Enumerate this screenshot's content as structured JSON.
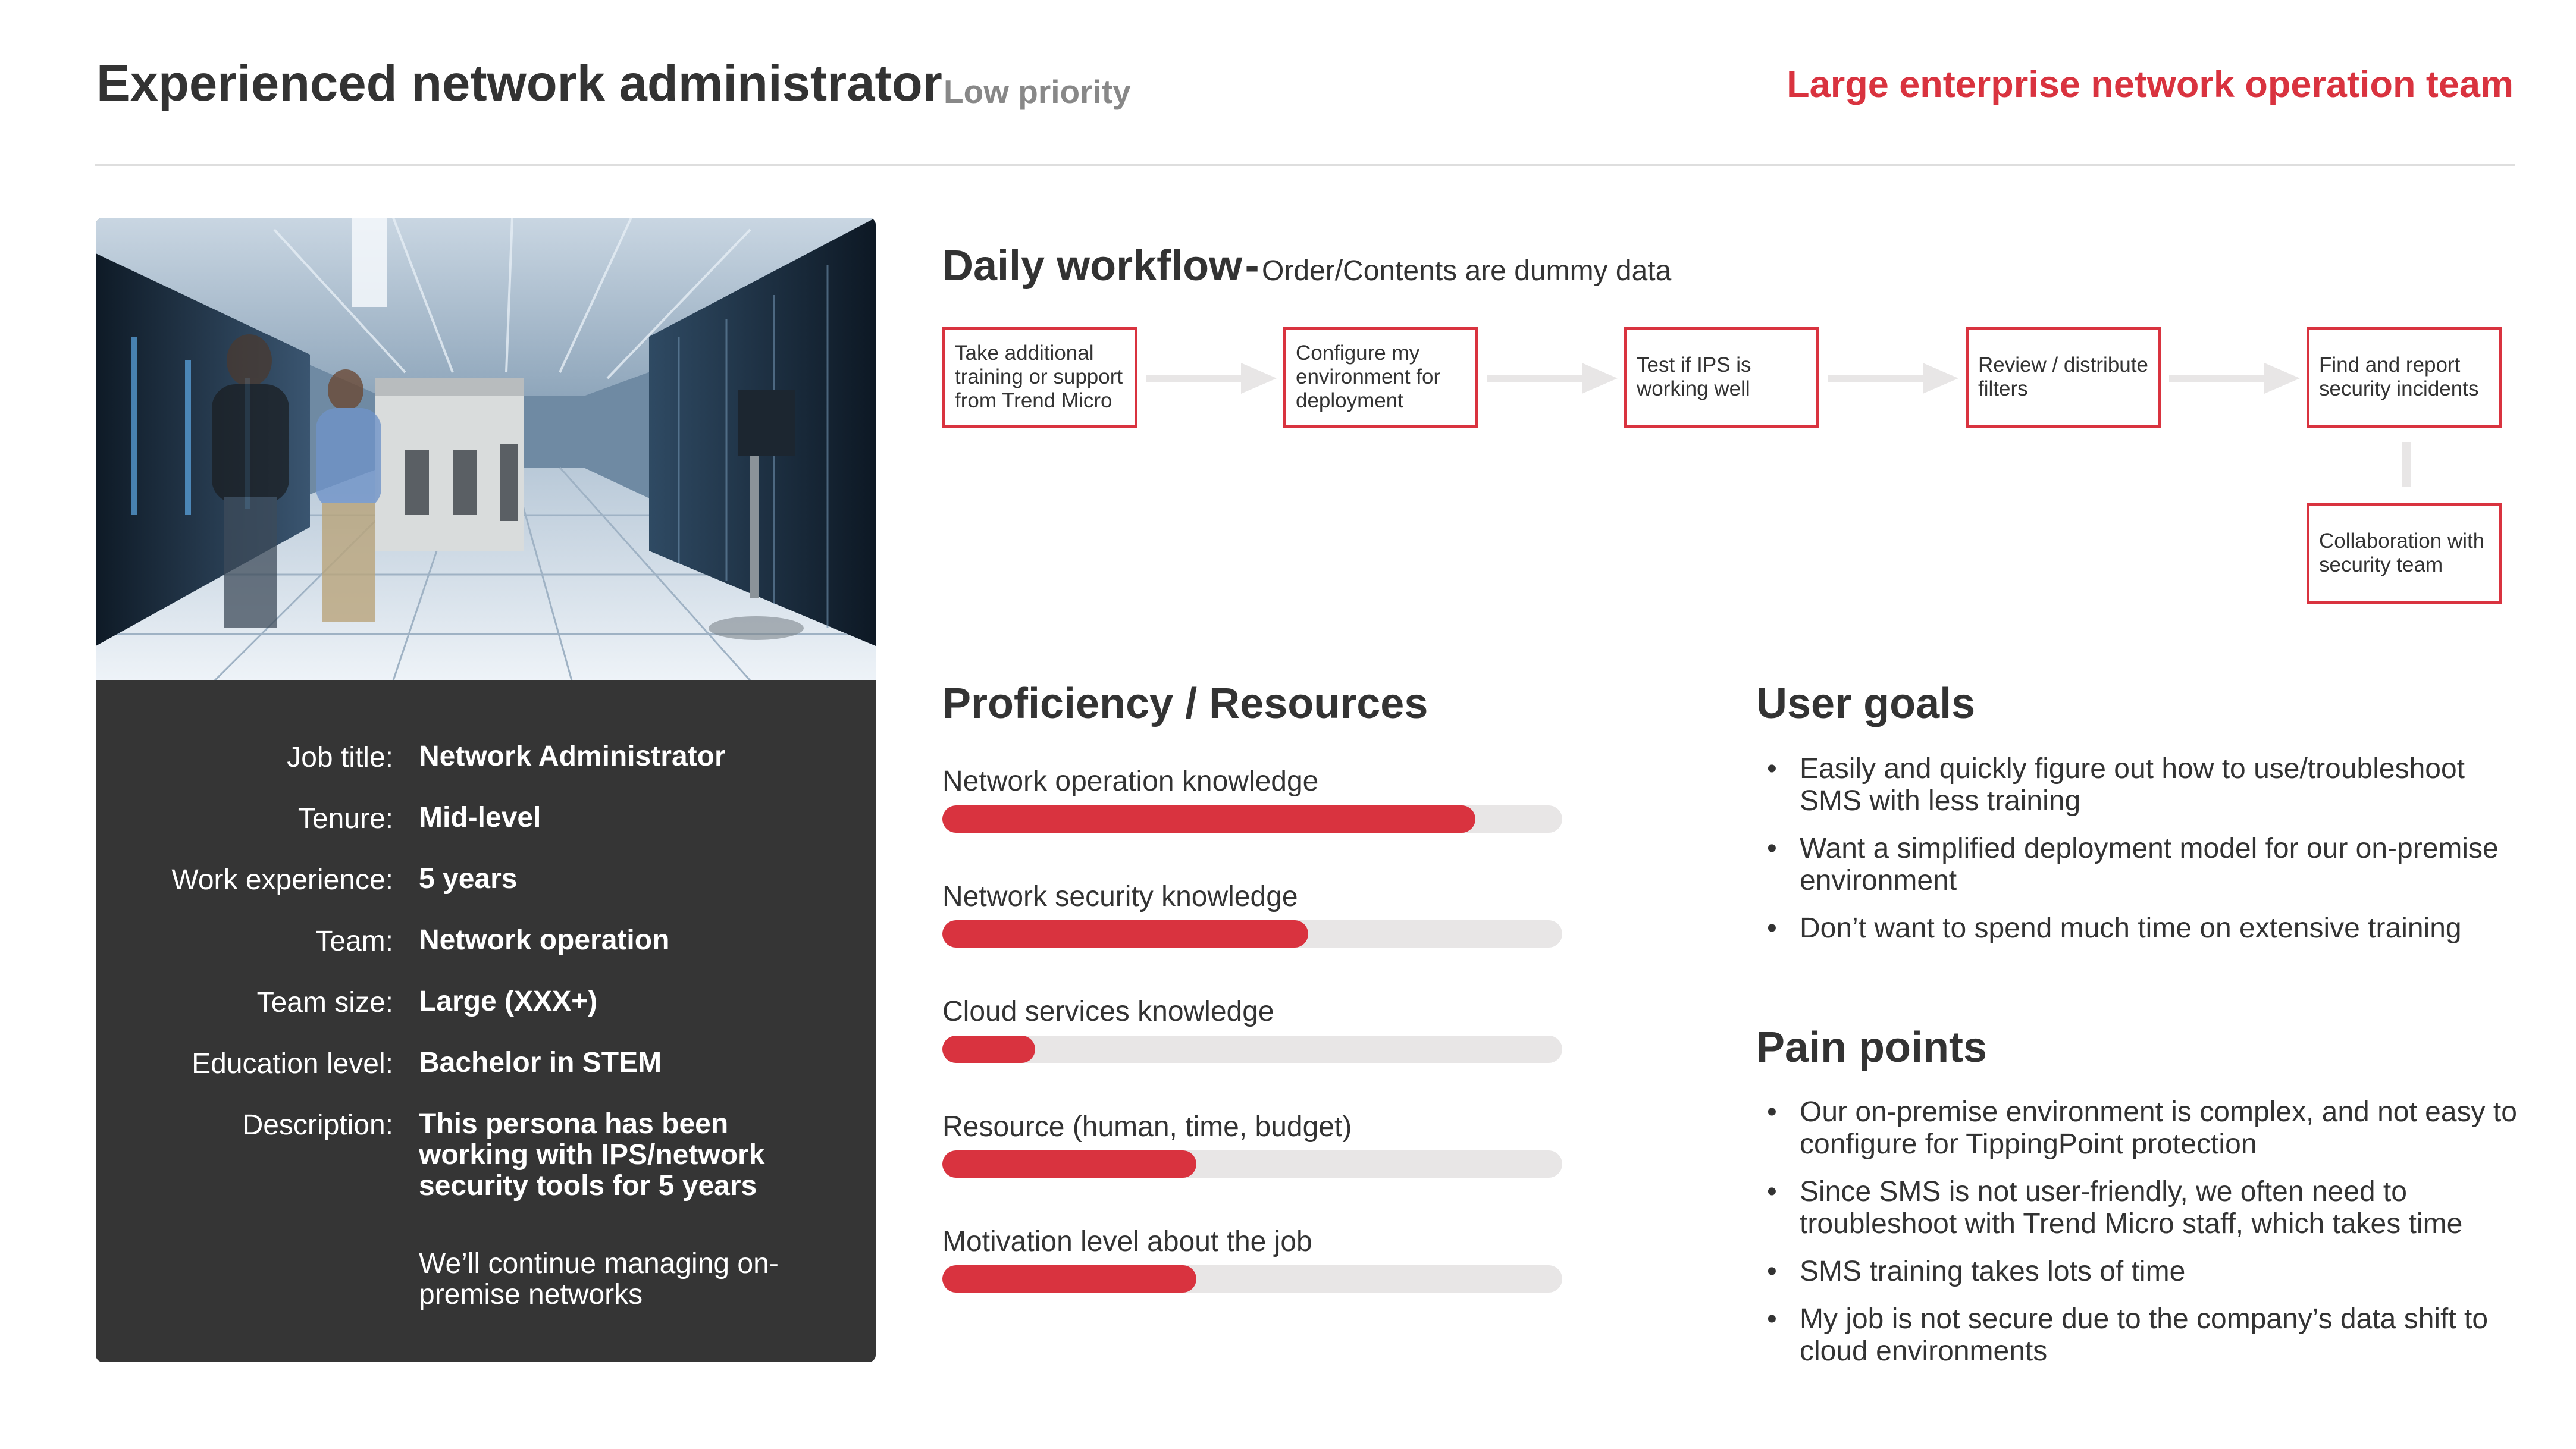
{
  "header": {
    "title": "Experienced network administrator",
    "priority": "Low priority",
    "team": "Large enterprise network operation team"
  },
  "persona": {
    "fields": [
      {
        "label": "Job title:",
        "value": "Network Administrator"
      },
      {
        "label": "Tenure:",
        "value": "Mid-level"
      },
      {
        "label": "Work experience:",
        "value": "5 years"
      },
      {
        "label": "Team:",
        "value": "Network operation"
      },
      {
        "label": "Team size:",
        "value": "Large (XXX+)"
      },
      {
        "label": "Education level:",
        "value": "Bachelor in STEM"
      },
      {
        "label": "Description:",
        "value": "This persona has been working with IPS/network security tools for 5 years"
      }
    ],
    "description_note": "We’ll continue managing on-premise networks"
  },
  "workflow": {
    "title": "Daily workflow",
    "separator": "-",
    "note": "Order/Contents are dummy data",
    "steps": [
      "Take additional training or support from Trend Micro",
      "Configure my environment for deployment",
      "Test if IPS is working well",
      "Review / distribute filters",
      "Find and report security incidents"
    ],
    "branch_step": "Collaboration with security team"
  },
  "proficiency": {
    "title": "Proficiency / Resources",
    "items": [
      {
        "label": "Network operation knowledge",
        "level": 0.86
      },
      {
        "label": "Network security knowledge",
        "level": 0.59
      },
      {
        "label": "Cloud services knowledge",
        "level": 0.15
      },
      {
        "label": "Resource (human, time, budget)",
        "level": 0.41
      },
      {
        "label": "Motivation level about the job",
        "level": 0.41
      }
    ]
  },
  "user_goals": {
    "title": "User goals",
    "items": [
      "Easily and quickly figure out how to use/troubleshoot SMS with less training",
      "Want a simplified deployment model for our on-premise environment",
      "Don’t want to spend much time on extensive training"
    ]
  },
  "pain_points": {
    "title": "Pain points",
    "items": [
      "Our on-premise environment is complex, and not easy to configure for TippingPoint protection",
      "Since SMS is not user-friendly, we often need to troubleshoot with Trend Micro staff, which takes time",
      "SMS training takes lots of time",
      "My job is not secure due to the company’s data shift to cloud environments"
    ]
  },
  "icons": {
    "bullet": "•",
    "arrow": "arrow-right-icon"
  },
  "colors": {
    "accent": "#d9333f",
    "card": "#353535",
    "track": "#e8e6e6"
  }
}
